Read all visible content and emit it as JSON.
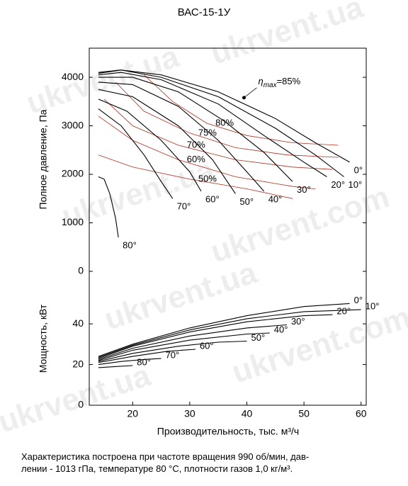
{
  "watermarks": [
    "ukrvent.ua",
    "ukrvent.com"
  ],
  "caption": [
    "Характеристика построена при частоте вращения 990 об/мин, дав-",
    "лении - 1013 гПа, температуре 80 °С, плотности газов 1,0 кг/м³."
  ],
  "chart_data": [
    {
      "type": "line",
      "title": "ВАС-15-1У",
      "ylabel": "Полное давление, Па",
      "xlim": [
        12.4,
        60.9
      ],
      "ylim": [
        0,
        4600
      ],
      "yticks": [
        0,
        1000,
        2000,
        3000,
        4000
      ],
      "series": [
        {
          "name": "0°",
          "color": "#000000",
          "x": [
            14,
            18,
            25,
            35,
            45,
            52,
            58
          ],
          "values": [
            4100,
            4150,
            4050,
            3700,
            3150,
            2650,
            2250
          ]
        },
        {
          "name": "10°",
          "color": "#000000",
          "x": [
            14,
            18,
            25,
            35,
            45,
            52,
            57
          ],
          "values": [
            4080,
            4150,
            4000,
            3600,
            2950,
            2400,
            1950
          ]
        },
        {
          "name": "20°",
          "color": "#000000",
          "x": [
            14,
            18,
            25,
            35,
            43,
            50,
            54
          ],
          "values": [
            4050,
            4100,
            3950,
            3450,
            2800,
            2250,
            1950
          ]
        },
        {
          "name": "30°",
          "color": "#000000",
          "x": [
            14,
            20,
            28,
            36,
            43,
            48
          ],
          "values": [
            4000,
            4000,
            3700,
            3100,
            2450,
            1850
          ]
        },
        {
          "name": "40°",
          "color": "#000000",
          "x": [
            14,
            20,
            28,
            35,
            40,
            43
          ],
          "values": [
            3900,
            3850,
            3400,
            2700,
            2050,
            1650
          ]
        },
        {
          "name": "50°",
          "color": "#000000",
          "x": [
            14,
            20,
            28,
            34,
            38
          ],
          "values": [
            3750,
            3600,
            3000,
            2300,
            1600
          ]
        },
        {
          "name": "60°",
          "color": "#000000",
          "x": [
            14,
            19,
            25,
            30,
            32
          ],
          "values": [
            3550,
            3300,
            2700,
            2050,
            1650
          ]
        },
        {
          "name": "70°",
          "color": "#000000",
          "x": [
            14,
            18,
            22,
            25,
            27
          ],
          "values": [
            3350,
            3000,
            2400,
            1850,
            1500
          ]
        },
        {
          "name": "80°",
          "color": "#000000",
          "x": [
            14,
            15,
            16,
            17,
            17.5
          ],
          "values": [
            1950,
            1900,
            1600,
            1100,
            700
          ]
        }
      ],
      "efficiency_series": [
        {
          "name": "80%",
          "color": "#b03020",
          "x": [
            22,
            27,
            33,
            40,
            48,
            56
          ],
          "values": [
            4050,
            3500,
            3050,
            2800,
            2650,
            2600
          ]
        },
        {
          "name": "75%",
          "color": "#b03020",
          "x": [
            17,
            22,
            30,
            38,
            47,
            56
          ],
          "values": [
            3900,
            3300,
            2850,
            2550,
            2400,
            2350
          ]
        },
        {
          "name": "70%",
          "color": "#b03020",
          "x": [
            15,
            20,
            28,
            38,
            48,
            55
          ],
          "values": [
            3550,
            3000,
            2600,
            2300,
            2150,
            2100
          ]
        },
        {
          "name": "60%",
          "color": "#b03020",
          "x": [
            14,
            20,
            28,
            38,
            48,
            52
          ],
          "values": [
            3200,
            2700,
            2300,
            1950,
            1750,
            1700
          ]
        },
        {
          "name": "50%",
          "color": "#b03020",
          "x": [
            14,
            20,
            30,
            40,
            48
          ],
          "values": [
            2400,
            2150,
            1900,
            1700,
            1500
          ]
        }
      ],
      "annotation": {
        "symbol": "η",
        "sub": "max",
        "text": "=85%",
        "x": 39.5,
        "y": 3580
      }
    },
    {
      "type": "line",
      "ylabel": "Мощность, кВт",
      "xlabel": "Производительность, тыс. м³/ч",
      "xlim": [
        12.4,
        60.9
      ],
      "xticks": [
        20,
        30,
        40,
        50,
        60
      ],
      "ylim": [
        0,
        65.8
      ],
      "yticks": [
        0,
        20,
        40
      ],
      "series": [
        {
          "name": "0°",
          "color": "#000000",
          "x": [
            14,
            20,
            30,
            40,
            50,
            58
          ],
          "values": [
            24,
            30,
            38,
            44,
            48.5,
            50
          ]
        },
        {
          "name": "10°",
          "color": "#000000",
          "x": [
            14,
            20,
            30,
            40,
            50,
            60
          ],
          "values": [
            23.5,
            29.5,
            37,
            42.5,
            46,
            47
          ]
        },
        {
          "name": "20°",
          "color": "#000000",
          "x": [
            14,
            20,
            30,
            40,
            50,
            55
          ],
          "values": [
            23,
            29,
            36,
            41,
            44,
            44.5
          ]
        },
        {
          "name": "30°",
          "color": "#000000",
          "x": [
            14,
            20,
            30,
            40,
            47
          ],
          "values": [
            22.5,
            28,
            34,
            38,
            39.5
          ]
        },
        {
          "name": "40°",
          "color": "#000000",
          "x": [
            14,
            20,
            30,
            40,
            44
          ],
          "values": [
            22,
            27,
            32,
            35,
            35.5
          ]
        },
        {
          "name": "50°",
          "color": "#000000",
          "x": [
            14,
            20,
            28,
            35,
            40
          ],
          "values": [
            21.5,
            25.5,
            29,
            31,
            31.5
          ]
        },
        {
          "name": "60°",
          "color": "#000000",
          "x": [
            14,
            20,
            26,
            31
          ],
          "values": [
            21,
            24,
            26.5,
            27.5
          ]
        },
        {
          "name": "70°",
          "color": "#000000",
          "x": [
            14,
            18,
            22,
            25
          ],
          "values": [
            20,
            21.5,
            22.5,
            23
          ]
        },
        {
          "name": "80°",
          "color": "#000000",
          "x": [
            14,
            17,
            20
          ],
          "values": [
            18.5,
            19,
            19.5
          ]
        }
      ]
    }
  ]
}
